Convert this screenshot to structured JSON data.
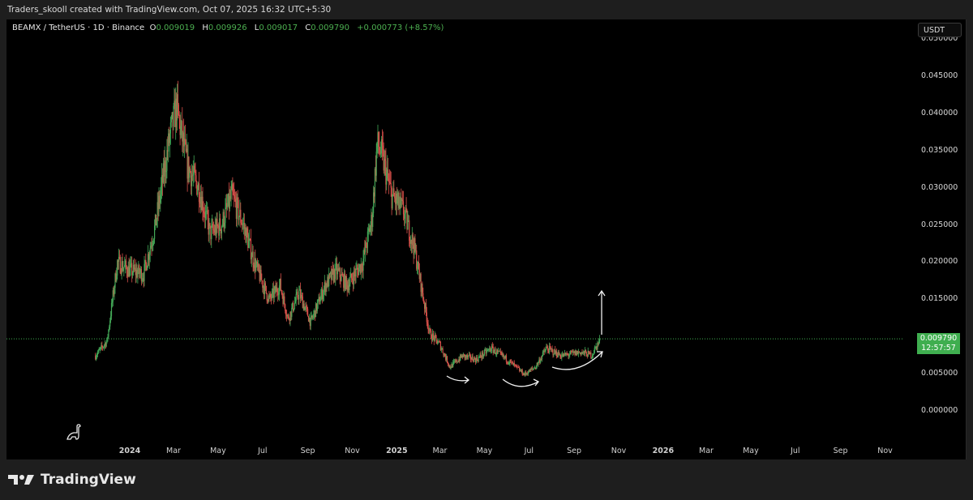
{
  "credit": "Traders_skooll created with TradingView.com, Oct 07, 2025 16:32 UTC+5:30",
  "legend": {
    "symbol": "BEAMX / TetherUS · 1D · Binance",
    "o_label": "O",
    "o": "0.009019",
    "h_label": "H",
    "h": "0.009926",
    "l_label": "L",
    "l": "0.009017",
    "c_label": "C",
    "c": "0.009790",
    "change": "+0.000773 (+8.57%)"
  },
  "currency_button": "USDT",
  "last_price": {
    "price": "0.009790",
    "countdown": "12:57:57"
  },
  "brand": "TradingView",
  "colors": {
    "up": "#43a857",
    "down": "#d9504a",
    "accent": "#3fae4f"
  },
  "chart_data": {
    "type": "candlestick",
    "ylim": [
      0,
      0.05
    ],
    "y_ticks": [
      "0.050000",
      "0.045000",
      "0.040000",
      "0.035000",
      "0.030000",
      "0.025000",
      "0.020000",
      "0.015000",
      "0.010000",
      "0.005000",
      "0.000000"
    ],
    "x_ticks": [
      "2024",
      "Mar",
      "May",
      "Jul",
      "Sep",
      "Nov",
      "2025",
      "Mar",
      "May",
      "Jul",
      "Sep",
      "Nov",
      "2026",
      "Mar",
      "May",
      "Jul",
      "Sep",
      "Nov"
    ],
    "x_tick_dates": [
      "2024-01-01",
      "2024-03-01",
      "2024-05-01",
      "2024-07-01",
      "2024-09-01",
      "2024-11-01",
      "2025-01-01",
      "2025-03-01",
      "2025-05-01",
      "2025-07-01",
      "2025-09-01",
      "2025-11-01",
      "2026-01-01",
      "2026-03-01",
      "2026-05-01",
      "2026-07-01",
      "2026-09-01",
      "2026-11-01"
    ],
    "approx_close_path": [
      [
        "2023-11-15",
        0.0075
      ],
      [
        "2023-12-01",
        0.0095
      ],
      [
        "2023-12-15",
        0.02
      ],
      [
        "2024-01-01",
        0.019
      ],
      [
        "2024-01-20",
        0.0185
      ],
      [
        "2024-02-05",
        0.025
      ],
      [
        "2024-02-25",
        0.037
      ],
      [
        "2024-03-05",
        0.041
      ],
      [
        "2024-03-20",
        0.033
      ],
      [
        "2024-04-05",
        0.03
      ],
      [
        "2024-04-20",
        0.024
      ],
      [
        "2024-05-05",
        0.025
      ],
      [
        "2024-05-20",
        0.029
      ],
      [
        "2024-06-05",
        0.025
      ],
      [
        "2024-06-20",
        0.02
      ],
      [
        "2024-07-10",
        0.015
      ],
      [
        "2024-07-25",
        0.017
      ],
      [
        "2024-08-05",
        0.0125
      ],
      [
        "2024-08-20",
        0.016
      ],
      [
        "2024-09-05",
        0.012
      ],
      [
        "2024-09-25",
        0.017
      ],
      [
        "2024-10-10",
        0.019
      ],
      [
        "2024-10-25",
        0.017
      ],
      [
        "2024-11-15",
        0.02
      ],
      [
        "2024-11-28",
        0.026
      ],
      [
        "2024-12-05",
        0.036
      ],
      [
        "2024-12-10",
        0.035
      ],
      [
        "2024-12-25",
        0.029
      ],
      [
        "2025-01-10",
        0.027
      ],
      [
        "2025-01-25",
        0.022
      ],
      [
        "2025-02-05",
        0.016
      ],
      [
        "2025-02-15",
        0.0105
      ],
      [
        "2025-03-01",
        0.009
      ],
      [
        "2025-03-15",
        0.006
      ],
      [
        "2025-04-01",
        0.0075
      ],
      [
        "2025-04-20",
        0.007
      ],
      [
        "2025-05-10",
        0.0085
      ],
      [
        "2025-06-01",
        0.007
      ],
      [
        "2025-06-25",
        0.005
      ],
      [
        "2025-07-10",
        0.006
      ],
      [
        "2025-07-25",
        0.0085
      ],
      [
        "2025-08-15",
        0.0075
      ],
      [
        "2025-09-10",
        0.008
      ],
      [
        "2025-09-25",
        0.0076
      ],
      [
        "2025-10-07",
        0.00979
      ]
    ],
    "last_close": 0.00979
  }
}
